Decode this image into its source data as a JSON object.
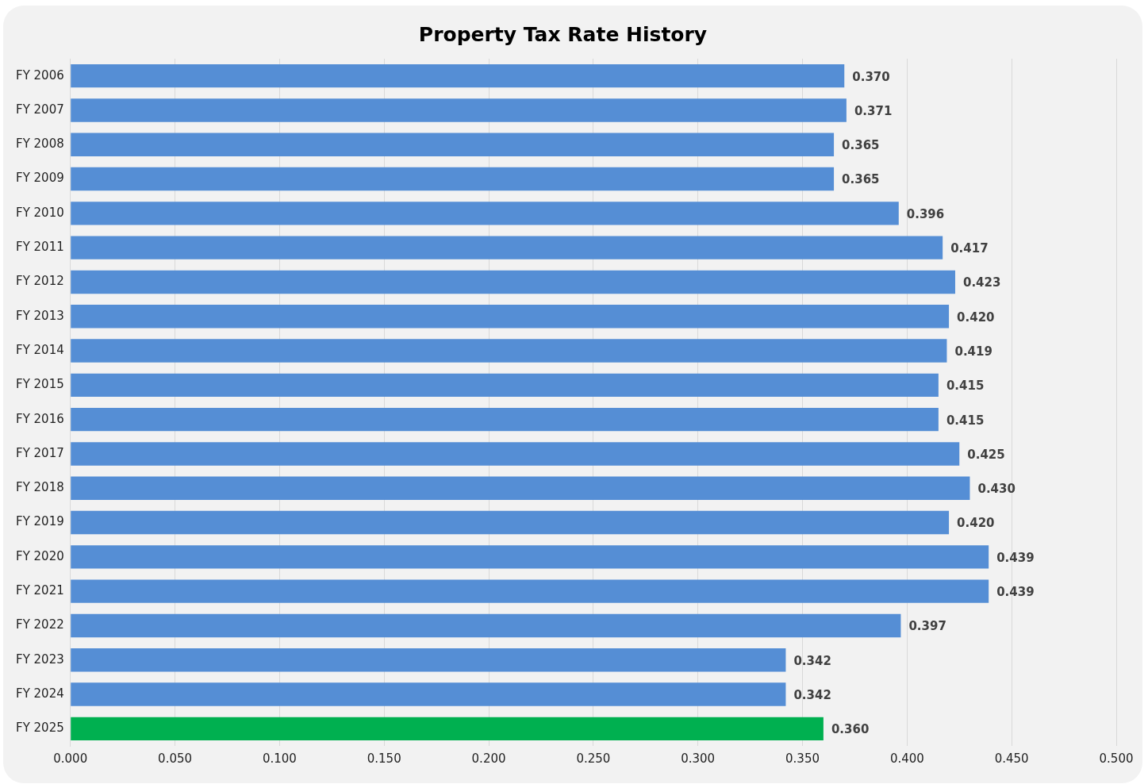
{
  "chart_data": {
    "type": "bar",
    "title": "Property Tax Rate History",
    "orientation": "horizontal",
    "categories": [
      "FY 2006",
      "FY 2007",
      "FY 2008",
      "FY 2009",
      "FY 2010",
      "FY 2011",
      "FY 2012",
      "FY 2013",
      "FY 2014",
      "FY 2015",
      "FY 2016",
      "FY 2017",
      "FY 2018",
      "FY 2019",
      "FY 2020",
      "FY 2021",
      "FY 2022",
      "FY 2023",
      "FY 2024",
      "FY 2025"
    ],
    "values": [
      0.37,
      0.371,
      0.365,
      0.365,
      0.396,
      0.417,
      0.423,
      0.42,
      0.419,
      0.415,
      0.415,
      0.425,
      0.43,
      0.42,
      0.439,
      0.439,
      0.397,
      0.342,
      0.342,
      0.36
    ],
    "value_labels": [
      "0.370",
      "0.371",
      "0.365",
      "0.365",
      "0.396",
      "0.417",
      "0.423",
      "0.420",
      "0.419",
      "0.415",
      "0.415",
      "0.425",
      "0.430",
      "0.420",
      "0.439",
      "0.439",
      "0.397",
      "0.342",
      "0.342",
      "0.360"
    ],
    "colors": [
      "#558ed5",
      "#558ed5",
      "#558ed5",
      "#558ed5",
      "#558ed5",
      "#558ed5",
      "#558ed5",
      "#558ed5",
      "#558ed5",
      "#558ed5",
      "#558ed5",
      "#558ed5",
      "#558ed5",
      "#558ed5",
      "#558ed5",
      "#558ed5",
      "#558ed5",
      "#558ed5",
      "#558ed5",
      "#00b050"
    ],
    "xlim": [
      0,
      0.5
    ],
    "xticks": [
      {
        "value": 0,
        "label": "0.000"
      },
      {
        "value": 0.05,
        "label": "0.050"
      },
      {
        "value": 0.1,
        "label": "0.100"
      },
      {
        "value": 0.15,
        "label": "0.150"
      },
      {
        "value": 0.2,
        "label": "0.200"
      },
      {
        "value": 0.25,
        "label": "0.250"
      },
      {
        "value": 0.3,
        "label": "0.300"
      },
      {
        "value": 0.35,
        "label": "0.350"
      },
      {
        "value": 0.4,
        "label": "0.400"
      },
      {
        "value": 0.45,
        "label": "0.450"
      },
      {
        "value": 0.5,
        "label": "0.500"
      }
    ],
    "grid": "x",
    "legend": false
  }
}
